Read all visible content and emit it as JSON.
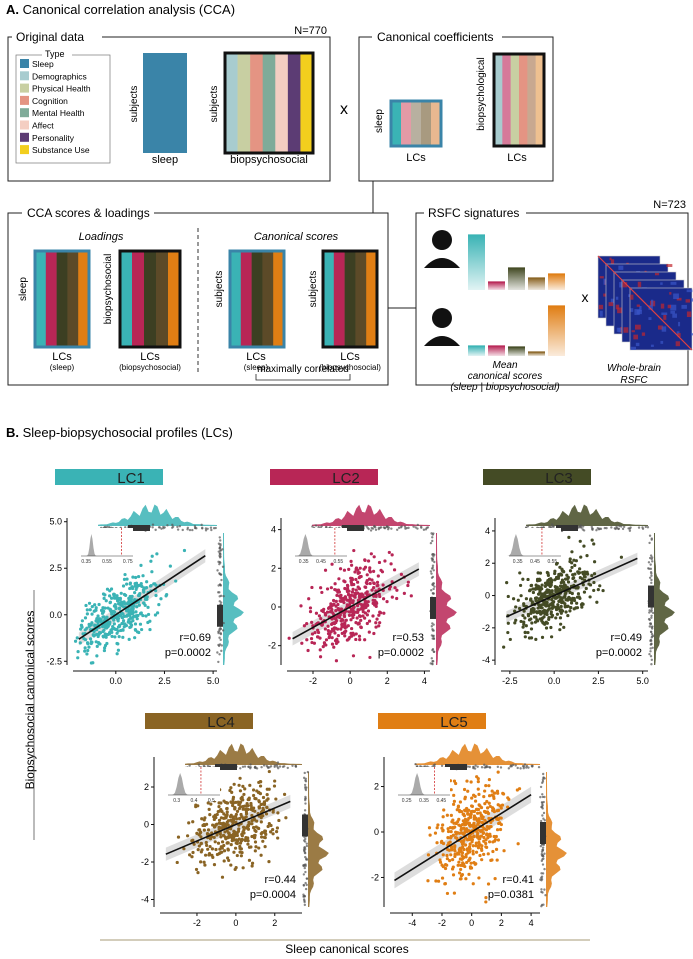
{
  "panel_a": {
    "heading_letter": "A.",
    "heading_text": " Canonical correlation analysis (CCA)",
    "original_data": {
      "title": "Original data",
      "n_label": "N=770",
      "legend_title": "Type",
      "legend": [
        {
          "label": "Sleep",
          "color": "#3a84a8"
        },
        {
          "label": "Demographics",
          "color": "#a8cccf"
        },
        {
          "label": "Physical Health",
          "color": "#c8cfa2"
        },
        {
          "label": "Cognition",
          "color": "#e49483"
        },
        {
          "label": "Mental Health",
          "color": "#7fab99"
        },
        {
          "label": "Affect",
          "color": "#f4cec2"
        },
        {
          "label": "Personality",
          "color": "#5c3c74"
        },
        {
          "label": "Substance Use",
          "color": "#f2ce1e"
        }
      ],
      "sleep_matrix_row_label": "subjects",
      "sleep_matrix_label": "sleep",
      "bio_matrix_row_label": "subjects",
      "bio_matrix_label": "biopsychosocial"
    },
    "times_symbol": "x",
    "coefficients": {
      "title": "Canonical coefficients",
      "sleep_row_label": "sleep",
      "sleep_col_label": "LCs",
      "bio_row_label": "biopsychological",
      "bio_col_label": "LCs"
    },
    "scores_loadings": {
      "title": "CCA scores & loadings",
      "loadings_title": "Loadings",
      "scores_title": "Canonical scores",
      "load_sleep_row": "sleep",
      "load_sleep_col": "LCs",
      "load_sleep_sub": "(sleep)",
      "load_bio_row": "biopsychosocial",
      "load_bio_col": "LCs",
      "load_bio_sub": "(biopsychosocial)",
      "score_sleep_row": "subjects",
      "score_sleep_col": "LCs",
      "score_sleep_sub": "(sleep)",
      "score_bio_row": "subjects",
      "score_bio_col": "LCs",
      "score_bio_sub": "(biopsychosocial)",
      "correlated_label": "maximally correlated"
    },
    "rsfc": {
      "title": "RSFC signatures",
      "n_label": "N=723",
      "times_symbol": "x",
      "mean_scores_label_1": "Mean",
      "mean_scores_label_2": "canonical scores",
      "mean_scores_label_3": "(sleep | biopsychosocial)",
      "brain_label_1": "Whole-brain",
      "brain_label_2": "RSFC"
    }
  },
  "panel_b": {
    "heading_letter": "B.",
    "heading_text": " Sleep-biopsychosocial profiles (LCs)",
    "y_axis_label": "Biopsychosocial canonical scores",
    "x_axis_label": "Sleep canonical scores"
  },
  "lc_colors": {
    "LC1": "#3ab3b5",
    "LC2": "#b82656",
    "LC3": "#444b25",
    "LC4": "#8a6424",
    "LC5": "#e07e14"
  },
  "chart_data": [
    {
      "type": "scatter",
      "title": "LC1",
      "color": "#3ab3b5",
      "xticks": [
        "0.0",
        "2.5",
        "5.0"
      ],
      "xlim": [
        -2.2,
        5.2
      ],
      "yticks": [
        "-2.5",
        "0.0",
        "2.5",
        "5.0"
      ],
      "ylim": [
        -2.7,
        5.2
      ],
      "r": "r=0.69",
      "p": "p=0.0002",
      "slope": 0.69,
      "inset_ticks": [
        "0.35",
        "0.55",
        "0.75"
      ],
      "inset_range": [
        0.3,
        0.8
      ],
      "inset_null_mean": 0.4,
      "inset_observed": 0.69
    },
    {
      "type": "scatter",
      "title": "LC2",
      "color": "#b82656",
      "xticks": [
        "-2",
        "0",
        "2",
        "4"
      ],
      "xlim": [
        -3.4,
        4.3
      ],
      "yticks": [
        "-2",
        "0",
        "2",
        "4"
      ],
      "ylim": [
        -3.0,
        4.6
      ],
      "r": "r=0.53",
      "p": "p=0.0002",
      "slope": 0.53,
      "inset_ticks": [
        "0.35",
        "0.45",
        "0.55"
      ],
      "inset_range": [
        0.3,
        0.6
      ],
      "inset_null_mean": 0.36,
      "inset_observed": 0.53
    },
    {
      "type": "scatter",
      "title": "LC3",
      "color": "#444b25",
      "xticks": [
        "-2.5",
        "0.0",
        "2.5",
        "5.0"
      ],
      "xlim": [
        -3.0,
        5.3
      ],
      "yticks": [
        "-4",
        "-2",
        "0",
        "2",
        "4"
      ],
      "ylim": [
        -4.3,
        4.8
      ],
      "r": "r=0.49",
      "p": "p=0.0002",
      "slope": 0.49,
      "inset_ticks": [
        "0.35",
        "0.45",
        "0.55"
      ],
      "inset_range": [
        0.3,
        0.6
      ],
      "inset_null_mean": 0.34,
      "inset_observed": 0.49
    },
    {
      "type": "scatter",
      "title": "LC4",
      "color": "#8a6424",
      "xticks": [
        "-2",
        "0",
        "2"
      ],
      "xlim": [
        -3.9,
        3.4
      ],
      "yticks": [
        "-4",
        "-2",
        "0",
        "2"
      ],
      "ylim": [
        -4.4,
        3.6
      ],
      "r": "r=0.44",
      "p": "p=0.0004",
      "slope": 0.44,
      "inset_ticks": [
        "0.3",
        "0.4",
        "0.5"
      ],
      "inset_range": [
        0.25,
        0.55
      ],
      "inset_null_mean": 0.32,
      "inset_observed": 0.44
    },
    {
      "type": "scatter",
      "title": "LC5",
      "color": "#e07e14",
      "xticks": [
        "-4",
        "-2",
        "0",
        "2",
        "4"
      ],
      "xlim": [
        -5.5,
        4.6
      ],
      "yticks": [
        "-2",
        "0",
        "2"
      ],
      "ylim": [
        -3.3,
        3.3
      ],
      "r": "r=0.41",
      "p": "p=0.0381",
      "slope": 0.41,
      "inset_ticks": [
        "0.25",
        "0.35",
        "0.45"
      ],
      "inset_range": [
        0.2,
        0.5
      ],
      "inset_null_mean": 0.31,
      "inset_observed": 0.41
    }
  ]
}
